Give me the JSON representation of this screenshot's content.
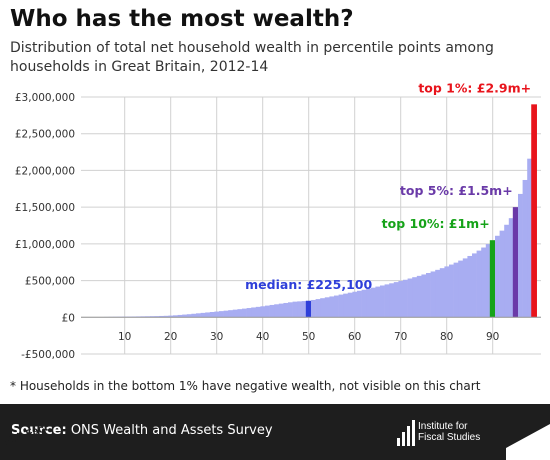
{
  "header": {
    "title": "Who has the most wealth?",
    "subtitle": "Distribution of total net household wealth in percentile points among households in Great Britain, 2012-14"
  },
  "footnote": "* Households in the bottom 1% have negative wealth, not visible on this chart",
  "footer": {
    "source_label": "Source:",
    "source_text": "ONS Wealth and Assets Survey",
    "ifs_logo_text": [
      "Institute for",
      "Fiscal Studies"
    ],
    "fullfact_logo_text": "Full Fact"
  },
  "colors": {
    "bars": "#a8adf2",
    "median": "#2e3fd9",
    "top10": "#16a319",
    "top5": "#6a3aa8",
    "top1": "#e8141c",
    "grid": "#d0d0d0",
    "footer_bg": "#1e1e1e"
  },
  "chart_data": {
    "type": "bar",
    "x_label": "",
    "y_label": "",
    "ylim": [
      -500000,
      3000000
    ],
    "y_ticks": [
      -500000,
      0,
      500000,
      1000000,
      1500000,
      2000000,
      2500000,
      3000000
    ],
    "y_tick_labels": [
      "-£500,000",
      "£0",
      "£500,000",
      "£1,000,000",
      "£1,500,000",
      "£2,000,000",
      "£2,500,000",
      "£3,000,000"
    ],
    "x_ticks": [
      10,
      20,
      30,
      40,
      50,
      60,
      70,
      80,
      90
    ],
    "x_tick_labels": [
      "10",
      "20",
      "30",
      "40",
      "50",
      "60",
      "70",
      "80",
      "90"
    ],
    "percentiles": [
      2,
      3,
      4,
      5,
      6,
      7,
      8,
      9,
      10,
      11,
      12,
      13,
      14,
      15,
      16,
      17,
      18,
      19,
      20,
      21,
      22,
      23,
      24,
      25,
      26,
      27,
      28,
      29,
      30,
      31,
      32,
      33,
      34,
      35,
      36,
      37,
      38,
      39,
      40,
      41,
      42,
      43,
      44,
      45,
      46,
      47,
      48,
      49,
      50,
      51,
      52,
      53,
      54,
      55,
      56,
      57,
      58,
      59,
      60,
      61,
      62,
      63,
      64,
      65,
      66,
      67,
      68,
      69,
      70,
      71,
      72,
      73,
      74,
      75,
      76,
      77,
      78,
      79,
      80,
      81,
      82,
      83,
      84,
      85,
      86,
      87,
      88,
      89,
      90,
      91,
      92,
      93,
      94,
      95,
      96,
      97,
      98,
      99
    ],
    "values": [
      1000,
      2000,
      3000,
      4000,
      5000,
      6000,
      7000,
      8000,
      9000,
      10000,
      11000,
      12000,
      13000,
      14000,
      15000,
      16000,
      18000,
      20000,
      23000,
      27000,
      32000,
      37000,
      42000,
      48000,
      54000,
      60000,
      66000,
      72000,
      78000,
      84000,
      90000,
      97000,
      104000,
      111000,
      118000,
      126000,
      134000,
      142000,
      150000,
      159000,
      168000,
      177000,
      186000,
      195000,
      204000,
      213000,
      217000,
      221000,
      225100,
      236000,
      248000,
      260000,
      272000,
      284000,
      296000,
      309000,
      322000,
      335000,
      348000,
      361000,
      375000,
      389000,
      403000,
      418000,
      433000,
      448000,
      463000,
      479000,
      495000,
      511000,
      528000,
      546000,
      564000,
      583000,
      603000,
      624000,
      646000,
      669000,
      693000,
      718000,
      744000,
      772000,
      802000,
      835000,
      870000,
      908000,
      950000,
      997000,
      1050000,
      1110000,
      1180000,
      1260000,
      1350000,
      1500000,
      1680000,
      1870000,
      2160000,
      2900000
    ],
    "highlights": [
      {
        "key": "median",
        "percentile": 50,
        "value": 225100,
        "label": "median: £225,100"
      },
      {
        "key": "top10",
        "percentile": 90,
        "value": 1050000,
        "label": "top 10%: £1m+"
      },
      {
        "key": "top5",
        "percentile": 95,
        "value": 1500000,
        "label": "top 5%: £1.5m+"
      },
      {
        "key": "top1",
        "percentile": 99,
        "value": 2900000,
        "label": "top 1%: £2.9m+"
      }
    ]
  }
}
